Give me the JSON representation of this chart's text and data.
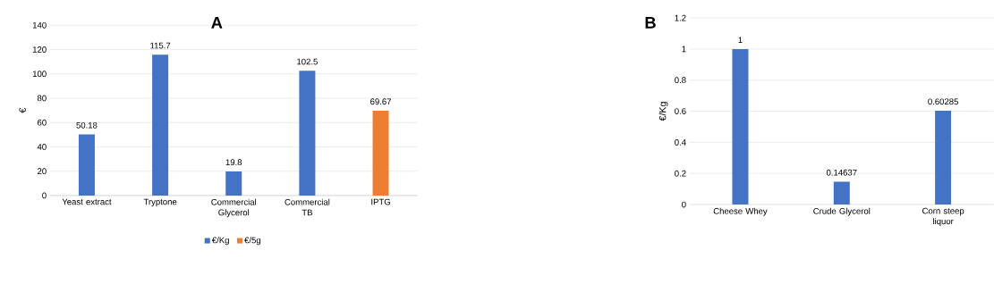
{
  "chart_data": [
    {
      "type": "bar",
      "title": "A",
      "ylabel": "€",
      "categories": [
        "Yeast extract",
        "Tryptone",
        "Commercial Glycerol",
        "Commercial TB",
        "IPTG"
      ],
      "series": [
        {
          "name": "€/Kg",
          "color": "#4472c4",
          "values": [
            50.18,
            115.7,
            19.8,
            102.5,
            null
          ]
        },
        {
          "name": "€/5g",
          "color": "#ed7d31",
          "values": [
            null,
            null,
            null,
            null,
            69.67
          ]
        }
      ],
      "ylim": [
        0,
        140
      ],
      "yticks": [
        0,
        20,
        40,
        60,
        80,
        100,
        120,
        140
      ],
      "grid": "y",
      "legend": "bottom",
      "data_labels": true
    },
    {
      "type": "bar",
      "title": "B",
      "ylabel": "€/Kg",
      "categories": [
        "Cheese Whey",
        "Crude Glycerol",
        "Corn steep liquor"
      ],
      "series": [
        {
          "color": "#4472c4",
          "values": [
            1,
            0.14637,
            0.60285
          ]
        }
      ],
      "ylim": [
        0,
        1.2
      ],
      "yticks": [
        0,
        0.2,
        0.4,
        0.6,
        0.8,
        1,
        1.2
      ],
      "grid": "y",
      "legend": false,
      "data_labels": true
    }
  ]
}
